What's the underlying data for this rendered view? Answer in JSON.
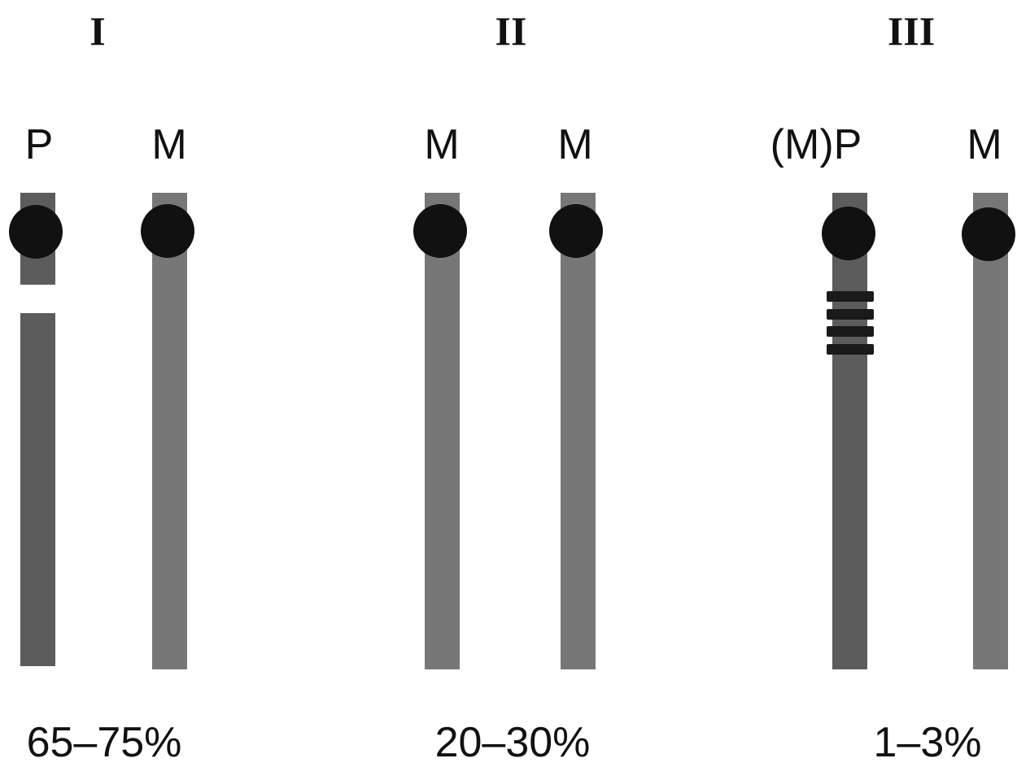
{
  "panels": [
    {
      "numeral": "I",
      "frequency": "65–75%",
      "chromosomes": [
        {
          "label": "P",
          "origin": "paternal",
          "has_deletion": true,
          "imprinting_mark": false
        },
        {
          "label": "M",
          "origin": "maternal",
          "has_deletion": false,
          "imprinting_mark": false
        }
      ]
    },
    {
      "numeral": "II",
      "frequency": "20–30%",
      "chromosomes": [
        {
          "label": "M",
          "origin": "maternal",
          "has_deletion": false,
          "imprinting_mark": false
        },
        {
          "label": "M",
          "origin": "maternal",
          "has_deletion": false,
          "imprinting_mark": false
        }
      ]
    },
    {
      "numeral": "III",
      "frequency": "1–3%",
      "chromosomes": [
        {
          "label": "(M)P",
          "origin": "paternal",
          "has_deletion": false,
          "imprinting_mark": true,
          "band_count": 4
        },
        {
          "label": "M",
          "origin": "maternal",
          "has_deletion": false,
          "imprinting_mark": false
        }
      ]
    }
  ],
  "colors": {
    "paternal": "#5c5c5c",
    "maternal": "#777777",
    "centromere": "#111111",
    "text": "#111111",
    "background": "#ffffff"
  }
}
